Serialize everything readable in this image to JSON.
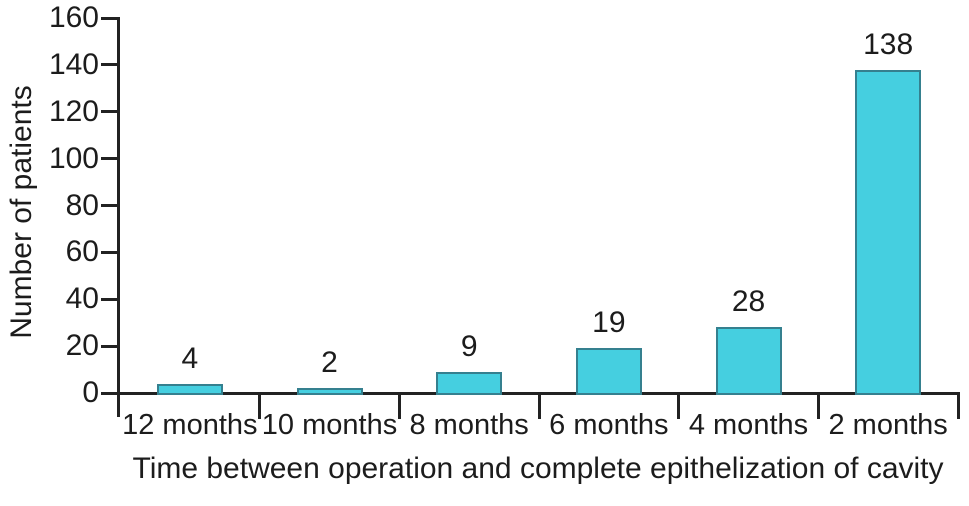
{
  "chart_data": {
    "type": "bar",
    "categories": [
      "12 months",
      "10 months",
      "8 months",
      "6 months",
      "4 months",
      "2 months"
    ],
    "values": [
      4,
      2,
      9,
      19,
      28,
      138
    ],
    "title": "",
    "xlabel": "Time between operation and complete epithelization of cavity",
    "ylabel": "Number of patients",
    "ylim": [
      0,
      160
    ],
    "yticks": [
      0,
      20,
      40,
      60,
      80,
      100,
      120,
      140,
      160
    ],
    "grid": false,
    "legend": "none",
    "colors": {
      "bar_fill": "#45cfe0",
      "bar_border": "#35808f",
      "axis": "#222222",
      "text": "#1c1c1c",
      "background": "#ffffff"
    }
  }
}
